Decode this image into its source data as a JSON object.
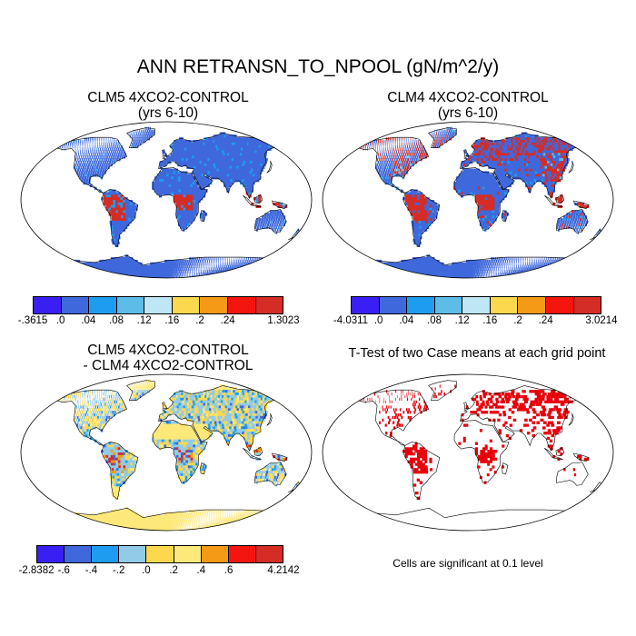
{
  "title": "ANN RETRANSN_TO_NPOOL (gN/m^2/y)",
  "note": "Cells are significant at 0.1 level",
  "colors": {
    "main_scale": [
      "#3a1ff5",
      "#3f68dc",
      "#1e9df0",
      "#5dbde8",
      "#bfe6f4",
      "#fbd84e",
      "#f59a17",
      "#f4150f",
      "#d62c26"
    ],
    "diff_scale": [
      "#3a1ff5",
      "#3f68dc",
      "#1e9df0",
      "#92cbe7",
      "#fbd84e",
      "#fde97a",
      "#f59a17",
      "#f4150f",
      "#d62c26"
    ],
    "significance": "#e8000b",
    "land_outline": "#000000"
  },
  "panels": [
    {
      "id": "clm5",
      "title_line1": "CLM5 4XCO2-CONTROL",
      "title_line2": "(yrs 6-10)",
      "colorbar_labels": [
        "-.3615",
        ".0",
        ".04",
        ".08",
        ".12",
        ".16",
        ".2",
        ".24",
        "1.3023"
      ]
    },
    {
      "id": "clm4",
      "title_line1": "CLM4 4XCO2-CONTROL",
      "title_line2": "(yrs 6-10)",
      "colorbar_labels": [
        "-4.0311",
        ".0",
        ".04",
        ".08",
        ".12",
        ".16",
        ".2",
        ".24",
        "3.0214"
      ]
    },
    {
      "id": "diff",
      "title_line1": "CLM5 4XCO2-CONTROL",
      "title_line2": "- CLM4 4XCO2-CONTROL",
      "colorbar_labels": [
        "-2.8382",
        "-.6",
        "-.4",
        "-.2",
        ".0",
        ".2",
        ".4",
        ".6",
        "4.2142"
      ]
    },
    {
      "id": "ttest",
      "title_line1": "T-Test of two Case means at each grid point",
      "title_line2": ""
    }
  ]
}
